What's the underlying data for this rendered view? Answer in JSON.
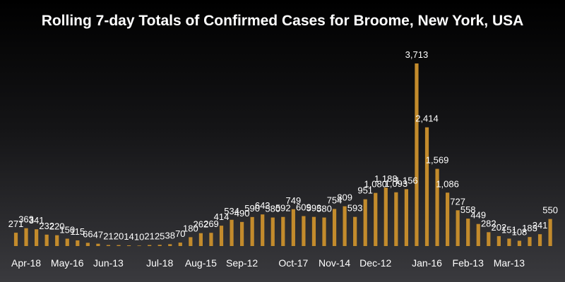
{
  "colors": {
    "bar": "#c38b2c",
    "background_top": "#000000",
    "background_bottom": "#3a3a3e",
    "text": "#ffffff"
  },
  "chart_data": {
    "type": "bar",
    "title": "Rolling 7-day Totals of Confirmed Cases for Broome, New York, USA",
    "xlabel": "",
    "ylabel": "",
    "ylim": [
      0,
      3713
    ],
    "grid": false,
    "legend": "none",
    "values_displayed": [
      "271",
      "363",
      "341",
      "232",
      "220",
      "150",
      "115",
      "66",
      "47",
      "21",
      "20",
      "14",
      "10",
      "21",
      "25",
      "38",
      "70",
      "180",
      "262",
      "269",
      "414",
      "534",
      "490",
      "590",
      "643",
      "580",
      "592",
      "749",
      "609",
      "593",
      "580",
      "754",
      "809",
      "593",
      "951",
      "1,080",
      "1,188",
      "1,093",
      "1,156",
      "3,713",
      "2,414",
      "1,569",
      "1,086",
      "727",
      "558",
      "449",
      "282",
      "202",
      "151",
      "108",
      "183",
      "241",
      "550"
    ],
    "values": [
      271,
      363,
      341,
      232,
      220,
      150,
      115,
      66,
      47,
      21,
      20,
      14,
      10,
      21,
      25,
      38,
      70,
      180,
      262,
      269,
      414,
      534,
      490,
      590,
      643,
      580,
      592,
      749,
      609,
      593,
      580,
      754,
      809,
      593,
      951,
      1080,
      1188,
      1093,
      1156,
      3713,
      2414,
      1569,
      1086,
      727,
      558,
      449,
      282,
      202,
      151,
      108,
      183,
      241,
      550
    ],
    "x_tick_labels": [
      {
        "label": "Apr-18",
        "index": 1
      },
      {
        "label": "May-16",
        "index": 5
      },
      {
        "label": "Jun-13",
        "index": 9
      },
      {
        "label": "Jul-18",
        "index": 14
      },
      {
        "label": "Aug-15",
        "index": 18
      },
      {
        "label": "Sep-12",
        "index": 22
      },
      {
        "label": "Oct-17",
        "index": 27
      },
      {
        "label": "Nov-14",
        "index": 31
      },
      {
        "label": "Dec-12",
        "index": 35
      },
      {
        "label": "Jan-16",
        "index": 40
      },
      {
        "label": "Feb-13",
        "index": 44
      },
      {
        "label": "Mar-13",
        "index": 48
      }
    ]
  }
}
